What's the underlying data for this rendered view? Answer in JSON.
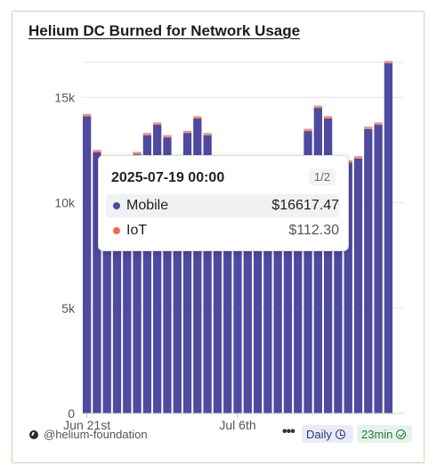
{
  "title": "Helium DC Burned for Network Usage",
  "colors": {
    "mobile": "#4e4aa0",
    "iot": "#ee6b47"
  },
  "chart_data": {
    "type": "bar",
    "stacked": true,
    "ylim": [
      0,
      17000
    ],
    "y_ticks": [
      0,
      5000,
      10000,
      15000
    ],
    "y_tick_labels": [
      "0",
      "5k",
      "10k",
      "15k"
    ],
    "x_tick_labels": [
      "Jun 21st",
      "Jul 6th"
    ],
    "x_tick_indices": [
      0,
      15
    ],
    "grid": true,
    "series": [
      {
        "name": "Mobile",
        "values": [
          14100,
          12400,
          10300,
          10500,
          11000,
          12300,
          13200,
          13700,
          13100,
          11000,
          13300,
          14000,
          13200,
          11500,
          11800,
          12000,
          12100,
          11700,
          11600,
          11700,
          11700,
          11800,
          13400,
          14500,
          14000,
          11800,
          11900,
          12100,
          13500,
          13700,
          16617.47
        ]
      },
      {
        "name": "IoT",
        "values": [
          110,
          110,
          110,
          110,
          110,
          110,
          110,
          110,
          110,
          110,
          110,
          110,
          110,
          110,
          110,
          110,
          110,
          110,
          110,
          110,
          110,
          110,
          110,
          110,
          110,
          110,
          110,
          110,
          110,
          110,
          112.3
        ]
      }
    ]
  },
  "tooltip": {
    "date": "2025-07-19 00:00",
    "page": "1/2",
    "rows": [
      {
        "name": "Mobile",
        "value": "$16617.47"
      },
      {
        "name": "IoT",
        "value": "$112.30"
      }
    ]
  },
  "footer": {
    "handle": "@helium-foundation",
    "more": "•••",
    "interval": "Daily",
    "age": "23min"
  }
}
